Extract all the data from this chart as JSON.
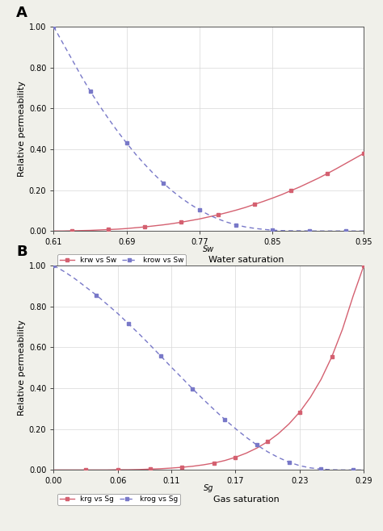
{
  "panel_A": {
    "label": "A",
    "xlabel": "Water saturation",
    "xlabel_inner": "Sw",
    "ylabel": "Relative permeability",
    "xlim": [
      0.61,
      0.95
    ],
    "ylim": [
      0.0,
      1.0
    ],
    "xticks": [
      0.61,
      0.69,
      0.77,
      0.85,
      0.95
    ],
    "xticklabels": [
      "0.61",
      "0.69",
      "0.77",
      "0.85",
      "0.95"
    ],
    "yticks": [
      0.0,
      0.2,
      0.4,
      0.6,
      0.8,
      1.0
    ],
    "yticklabels": [
      "0.00",
      "0.20",
      "0.40",
      "0.60",
      "0.80",
      "1.00"
    ],
    "krw_x": [
      0.61,
      0.62,
      0.63,
      0.64,
      0.65,
      0.66,
      0.67,
      0.68,
      0.69,
      0.7,
      0.71,
      0.72,
      0.73,
      0.74,
      0.75,
      0.76,
      0.77,
      0.78,
      0.79,
      0.8,
      0.81,
      0.82,
      0.83,
      0.84,
      0.85,
      0.86,
      0.87,
      0.88,
      0.89,
      0.9,
      0.91,
      0.92,
      0.93,
      0.94,
      0.95
    ],
    "krw_y": [
      0.0,
      0.0,
      0.001,
      0.002,
      0.003,
      0.005,
      0.007,
      0.009,
      0.012,
      0.016,
      0.02,
      0.025,
      0.03,
      0.036,
      0.043,
      0.051,
      0.059,
      0.069,
      0.079,
      0.09,
      0.102,
      0.115,
      0.13,
      0.145,
      0.161,
      0.178,
      0.197,
      0.216,
      0.237,
      0.258,
      0.281,
      0.305,
      0.33,
      0.355,
      0.38
    ],
    "krow_x": [
      0.61,
      0.62,
      0.63,
      0.64,
      0.65,
      0.66,
      0.67,
      0.68,
      0.69,
      0.7,
      0.71,
      0.72,
      0.73,
      0.74,
      0.75,
      0.76,
      0.77,
      0.78,
      0.79,
      0.8,
      0.81,
      0.82,
      0.83,
      0.84,
      0.85,
      0.86,
      0.87,
      0.88,
      0.89,
      0.9,
      0.91,
      0.92,
      0.93,
      0.94,
      0.95
    ],
    "krow_y": [
      1.0,
      0.92,
      0.84,
      0.76,
      0.685,
      0.615,
      0.55,
      0.488,
      0.43,
      0.375,
      0.325,
      0.278,
      0.235,
      0.196,
      0.161,
      0.13,
      0.103,
      0.079,
      0.059,
      0.043,
      0.03,
      0.02,
      0.013,
      0.008,
      0.004,
      0.002,
      0.001,
      0.001,
      0.0,
      0.0,
      0.0,
      0.0,
      0.0,
      0.0,
      0.0
    ],
    "krw_color": "#d46070",
    "krow_color": "#7878c8",
    "krw_marker_x": [
      0.63,
      0.67,
      0.71,
      0.75,
      0.79,
      0.83,
      0.87,
      0.91,
      0.95
    ],
    "krw_marker_y": [
      0.001,
      0.007,
      0.02,
      0.043,
      0.079,
      0.13,
      0.197,
      0.281,
      0.38
    ],
    "krow_marker_x": [
      0.61,
      0.65,
      0.69,
      0.73,
      0.77,
      0.81,
      0.85,
      0.89,
      0.93
    ],
    "krow_marker_y": [
      1.0,
      0.685,
      0.43,
      0.235,
      0.103,
      0.03,
      0.004,
      0.0,
      0.0
    ],
    "legend_krw": "krw vs Sw",
    "legend_krow": "krow vs Sw"
  },
  "panel_B": {
    "label": "B",
    "xlabel": "Gas saturation",
    "xlabel_inner": "Sg",
    "ylabel": "Relative permeability",
    "xlim": [
      0.0,
      0.29
    ],
    "ylim": [
      0.0,
      1.0
    ],
    "xticks": [
      0.0,
      0.06,
      0.11,
      0.17,
      0.23,
      0.29
    ],
    "xticklabels": [
      "0.00",
      "0.06",
      "0.11",
      "0.17",
      "0.23",
      "0.29"
    ],
    "yticks": [
      0.0,
      0.2,
      0.4,
      0.6,
      0.8,
      1.0
    ],
    "yticklabels": [
      "0.00",
      "0.20",
      "0.40",
      "0.60",
      "0.80",
      "1.00"
    ],
    "krg_x": [
      0.0,
      0.01,
      0.02,
      0.03,
      0.04,
      0.05,
      0.06,
      0.07,
      0.08,
      0.09,
      0.1,
      0.11,
      0.12,
      0.13,
      0.14,
      0.15,
      0.16,
      0.17,
      0.18,
      0.19,
      0.2,
      0.21,
      0.22,
      0.23,
      0.24,
      0.25,
      0.26,
      0.27,
      0.28,
      0.29
    ],
    "krg_y": [
      0.0,
      0.0,
      0.0,
      0.0,
      0.0,
      0.0,
      0.001,
      0.001,
      0.002,
      0.004,
      0.006,
      0.009,
      0.013,
      0.018,
      0.025,
      0.034,
      0.046,
      0.062,
      0.082,
      0.107,
      0.138,
      0.177,
      0.225,
      0.283,
      0.355,
      0.443,
      0.553,
      0.688,
      0.851,
      1.0
    ],
    "krog_x": [
      0.0,
      0.01,
      0.02,
      0.03,
      0.04,
      0.05,
      0.06,
      0.07,
      0.08,
      0.09,
      0.1,
      0.11,
      0.12,
      0.13,
      0.14,
      0.15,
      0.16,
      0.17,
      0.18,
      0.19,
      0.2,
      0.21,
      0.22,
      0.23,
      0.24,
      0.25,
      0.26,
      0.27,
      0.28,
      0.29
    ],
    "krog_y": [
      1.0,
      0.97,
      0.935,
      0.895,
      0.855,
      0.81,
      0.765,
      0.715,
      0.665,
      0.612,
      0.558,
      0.503,
      0.45,
      0.396,
      0.345,
      0.295,
      0.247,
      0.202,
      0.16,
      0.122,
      0.089,
      0.061,
      0.038,
      0.021,
      0.01,
      0.004,
      0.001,
      0.0,
      0.0,
      0.0
    ],
    "krg_color": "#d46070",
    "krog_color": "#7878c8",
    "krg_marker_x": [
      0.03,
      0.06,
      0.09,
      0.12,
      0.15,
      0.17,
      0.2,
      0.23,
      0.26,
      0.29
    ],
    "krg_marker_y": [
      0.0,
      0.001,
      0.004,
      0.013,
      0.034,
      0.062,
      0.138,
      0.283,
      0.553,
      1.0
    ],
    "krog_marker_x": [
      0.0,
      0.04,
      0.07,
      0.1,
      0.13,
      0.16,
      0.19,
      0.22,
      0.25,
      0.28
    ],
    "krog_marker_y": [
      1.0,
      0.855,
      0.715,
      0.558,
      0.396,
      0.247,
      0.122,
      0.038,
      0.004,
      0.0
    ],
    "legend_krg": "krg vs Sg",
    "legend_krog": "krog vs Sg"
  },
  "bg_color": "#f0f0ea",
  "plot_bg_color": "#ffffff",
  "tick_fontsize": 7,
  "legend_fontsize": 6.5,
  "axis_label_fontsize": 8,
  "inner_xlabel_fontsize": 7,
  "panel_label_fontsize": 13
}
